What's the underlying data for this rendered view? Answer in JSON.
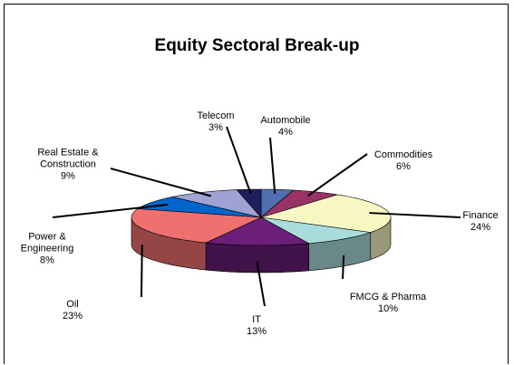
{
  "chart_data": {
    "type": "pie3d",
    "title": "Equity Sectoral Break-up",
    "categories": [
      "Automobile",
      "Commodities",
      "Finance",
      "FMCG & Pharma",
      "IT",
      "Oil",
      "Power & Engineering",
      "Real Estate & Construction",
      "Telecom"
    ],
    "values": [
      4,
      6,
      24,
      10,
      13,
      23,
      8,
      9,
      3
    ],
    "value_labels": [
      "4%",
      "6%",
      "24%",
      "10%",
      "13%",
      "23%",
      "8%",
      "9%",
      "3%"
    ],
    "colors": [
      "#4f6fb0",
      "#993366",
      "#f7f7c4",
      "#a9dcdc",
      "#6b1f78",
      "#f07070",
      "#0066cc",
      "#9ea3d4",
      "#1f1f5f"
    ]
  }
}
